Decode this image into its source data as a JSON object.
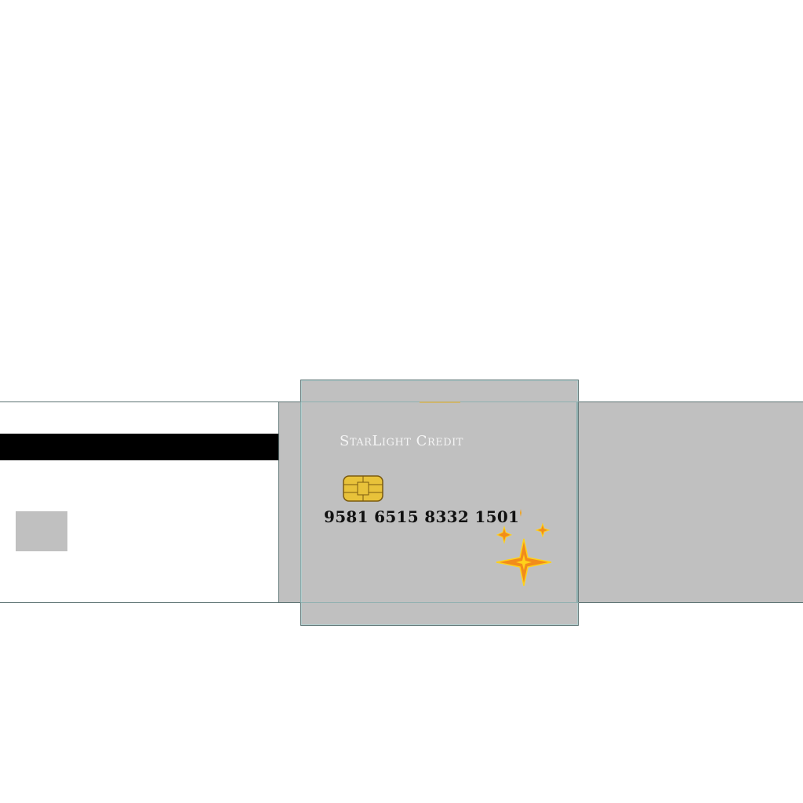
{
  "card_front": {
    "brand_name": "StarLight Credit",
    "card_number": "9581 6515 8332 1501"
  },
  "icons": {
    "chip": "emv-chip-icon",
    "sparkle": "sparkle-star-icon"
  },
  "colors": {
    "card_gray": "#c0c0c0",
    "stripe_black": "#000000",
    "border": "#5b7272",
    "brand_text": "#f4f4f4",
    "chip_gold": "#e8c23a",
    "star_orange": "#f28c1b",
    "star_yellow": "#ffd21a"
  }
}
